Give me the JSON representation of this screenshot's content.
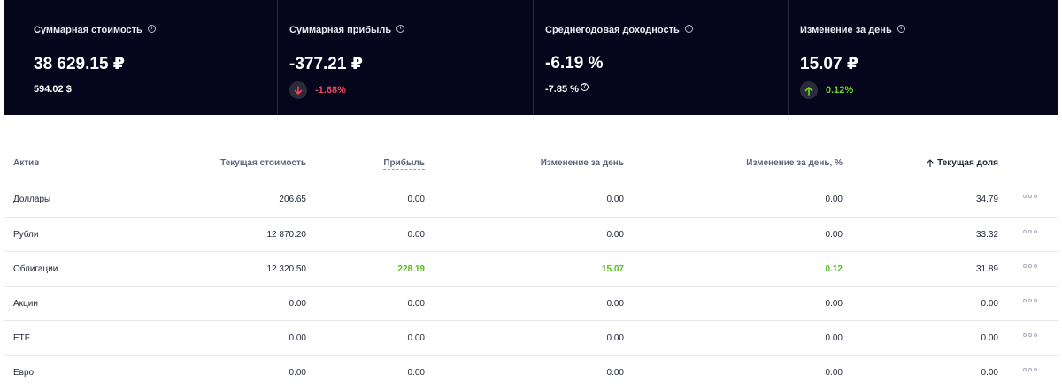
{
  "summary": {
    "total_value": {
      "title": "Суммарная стоимость",
      "value": "38 629.15 ₽",
      "sub": "594.02 $"
    },
    "total_profit": {
      "title": "Суммарная прибыль",
      "value": "-377.21 ₽",
      "delta": "-1.68%"
    },
    "annual_yield": {
      "title": "Среднегодовая доходность",
      "value": "-6.19 %",
      "sub": "-7.85 %"
    },
    "day_change": {
      "title": "Изменение за день",
      "value": "15.07 ₽",
      "delta": "0.12%"
    }
  },
  "table": {
    "headers": {
      "asset": "Актив",
      "current_value": "Текущая стоимость",
      "profit": "Прибыль",
      "day_change": "Изменение за день",
      "day_change_pct": "Изменение за день, %",
      "current_share": "Текущая доля"
    },
    "rows": [
      {
        "asset": "Доллары",
        "current_value": "206.65",
        "profit": "0.00",
        "day_change": "0.00",
        "day_change_pct": "0.00",
        "current_share": "34.79"
      },
      {
        "asset": "Рубли",
        "current_value": "12 870.20",
        "profit": "0.00",
        "day_change": "0.00",
        "day_change_pct": "0.00",
        "current_share": "33.32"
      },
      {
        "asset": "Облигации",
        "current_value": "12 320.50",
        "profit": "228.19",
        "day_change": "15.07",
        "day_change_pct": "0.12",
        "current_share": "31.89"
      },
      {
        "asset": "Акции",
        "current_value": "0.00",
        "profit": "0.00",
        "day_change": "0.00",
        "day_change_pct": "0.00",
        "current_share": "0.00"
      },
      {
        "asset": "ETF",
        "current_value": "0.00",
        "profit": "0.00",
        "day_change": "0.00",
        "day_change_pct": "0.00",
        "current_share": "0.00"
      },
      {
        "asset": "Евро",
        "current_value": "0.00",
        "profit": "0.00",
        "day_change": "0.00",
        "day_change_pct": "0.00",
        "current_share": "0.00"
      }
    ]
  },
  "colors": {
    "background": "#05061c",
    "negative": "#f0445c",
    "positive": "#6fd22c"
  },
  "icons": {
    "info": "info-icon",
    "question": "question-icon",
    "arrow_down": "arrow-down-icon",
    "arrow_up": "arrow-up-icon",
    "sort_up": "sort-arrow-up-icon",
    "more": "more-dots-icon"
  }
}
